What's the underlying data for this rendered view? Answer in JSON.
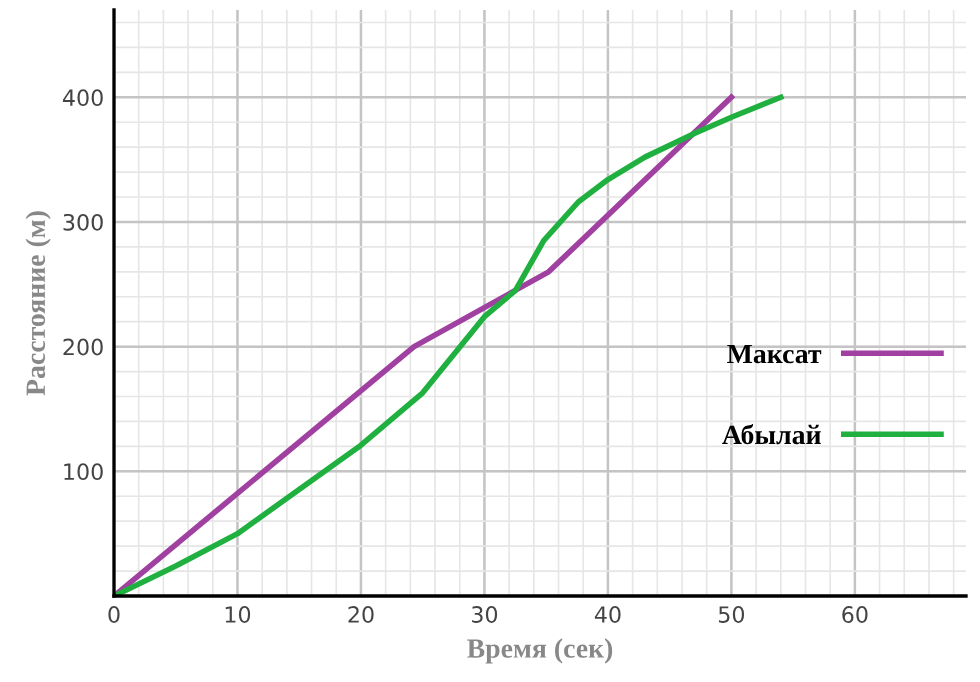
{
  "chart_data": {
    "type": "line",
    "xlabel": "Время (сек)",
    "ylabel": "Расстояние (м)",
    "xlim": [
      0,
      69
    ],
    "ylim": [
      0,
      470
    ],
    "xticks": [
      0,
      10,
      20,
      30,
      40,
      50,
      60
    ],
    "yticks": [
      {
        "value": 0,
        "label": null
      },
      100,
      200,
      300,
      400
    ],
    "grid": true,
    "legend": "right",
    "marker": "none",
    "line_style": "solid",
    "series": [
      {
        "name": "Максат",
        "color": "#a040a0",
        "x": [
          0,
          24.3,
          35.2,
          50
        ],
        "values": [
          0,
          200,
          260,
          400
        ]
      },
      {
        "name": "Абылай",
        "color": "#20b040",
        "x": [
          0,
          5,
          10,
          20,
          25,
          30,
          32.5,
          34.8,
          37.6,
          40,
          43,
          47,
          50,
          54
        ],
        "values": [
          0,
          24,
          50,
          121,
          163,
          224,
          245,
          285,
          316,
          334,
          352,
          371,
          384,
          400
        ]
      }
    ]
  }
}
